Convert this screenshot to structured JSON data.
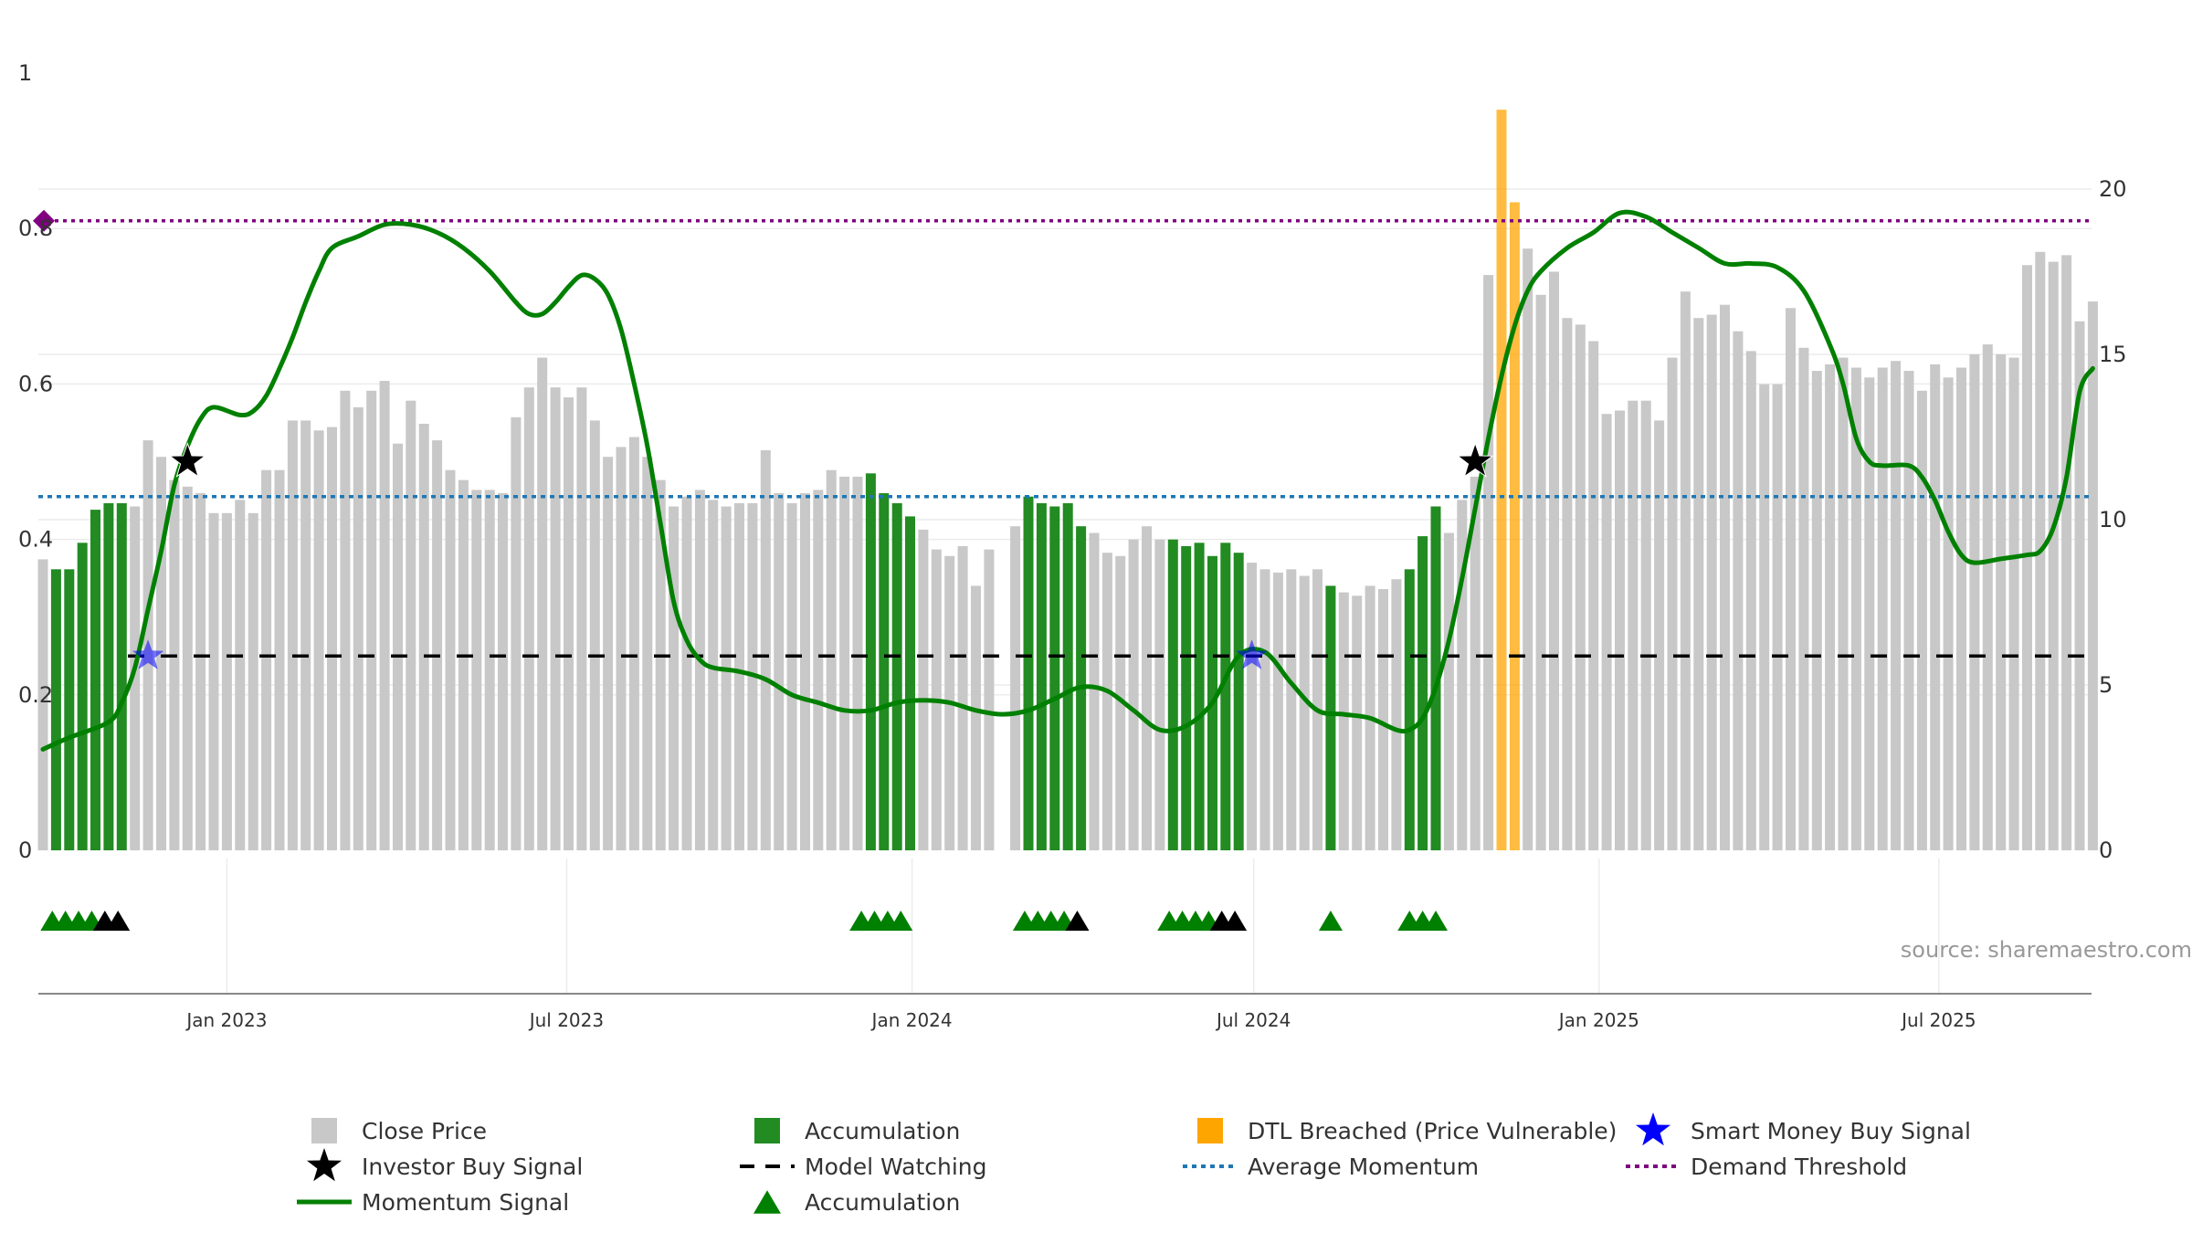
{
  "chart_data": {
    "type": "bar",
    "source": "source: sharemaestro.com",
    "left_axis": {
      "ticks": [
        "0",
        "0.2",
        "0.4",
        "0.6",
        "0.8",
        "1"
      ],
      "values": [
        0,
        0.2,
        0.4,
        0.6,
        0.8,
        1
      ],
      "ylim": [
        0,
        1
      ]
    },
    "right_axis": {
      "ticks": [
        "0",
        "5",
        "10",
        "15",
        "20"
      ],
      "values": [
        0,
        5,
        10,
        15,
        20
      ],
      "ylim": [
        0,
        23.5
      ]
    },
    "x_axis": {
      "labels": [
        "Jan 2023",
        "Jul 2023",
        "Jan 2024",
        "Jul 2024",
        "Jan 2025",
        "Jul 2025"
      ],
      "dates": [
        "2023-01-01",
        "2023-07-01",
        "2024-01-01",
        "2024-07-01",
        "2025-01-01",
        "2025-07-01"
      ],
      "range": [
        "2022-09-25",
        "2025-09-14"
      ]
    },
    "colors": {
      "close": "#c8c8c8",
      "accumulation": "#228b22",
      "dtl": "#ffa500",
      "momentum": "#008000",
      "average": "#1f77b4",
      "threshold": "#800080",
      "watch": "#000000",
      "smart_money": "#0000ff",
      "investor": "#000000"
    },
    "close_price": [
      [
        "2022-09-25",
        8.8,
        "c"
      ],
      [
        "2022-10-02",
        8.5,
        "a"
      ],
      [
        "2022-10-09",
        8.5,
        "a"
      ],
      [
        "2022-10-16",
        9.3,
        "a"
      ],
      [
        "2022-10-23",
        10.3,
        "a"
      ],
      [
        "2022-10-30",
        10.5,
        "a"
      ],
      [
        "2022-11-06",
        10.5,
        "a"
      ],
      [
        "2022-11-13",
        10.4,
        "c"
      ],
      [
        "2022-11-20",
        12.4,
        "c"
      ],
      [
        "2022-11-27",
        11.9,
        "c"
      ],
      [
        "2022-12-04",
        11.2,
        "c"
      ],
      [
        "2022-12-11",
        11.0,
        "c"
      ],
      [
        "2022-12-18",
        10.8,
        "c"
      ],
      [
        "2022-12-25",
        10.2,
        "c"
      ],
      [
        "2023-01-01",
        10.2,
        "c"
      ],
      [
        "2023-01-08",
        10.6,
        "c"
      ],
      [
        "2023-01-15",
        10.2,
        "c"
      ],
      [
        "2023-01-22",
        11.5,
        "c"
      ],
      [
        "2023-01-29",
        11.5,
        "c"
      ],
      [
        "2023-02-05",
        13.0,
        "c"
      ],
      [
        "2023-02-12",
        13.0,
        "c"
      ],
      [
        "2023-02-19",
        12.7,
        "c"
      ],
      [
        "2023-02-26",
        12.8,
        "c"
      ],
      [
        "2023-03-05",
        13.9,
        "c"
      ],
      [
        "2023-03-12",
        13.4,
        "c"
      ],
      [
        "2023-03-19",
        13.9,
        "c"
      ],
      [
        "2023-03-26",
        14.2,
        "c"
      ],
      [
        "2023-04-02",
        12.3,
        "c"
      ],
      [
        "2023-04-09",
        13.6,
        "c"
      ],
      [
        "2023-04-16",
        12.9,
        "c"
      ],
      [
        "2023-04-23",
        12.4,
        "c"
      ],
      [
        "2023-04-30",
        11.5,
        "c"
      ],
      [
        "2023-05-07",
        11.2,
        "c"
      ],
      [
        "2023-05-14",
        10.9,
        "c"
      ],
      [
        "2023-05-21",
        10.9,
        "c"
      ],
      [
        "2023-05-28",
        10.8,
        "c"
      ],
      [
        "2023-06-04",
        13.1,
        "c"
      ],
      [
        "2023-06-11",
        14.0,
        "c"
      ],
      [
        "2023-06-18",
        14.9,
        "c"
      ],
      [
        "2023-06-25",
        14.0,
        "c"
      ],
      [
        "2023-07-02",
        13.7,
        "c"
      ],
      [
        "2023-07-09",
        14.0,
        "c"
      ],
      [
        "2023-07-16",
        13.0,
        "c"
      ],
      [
        "2023-07-23",
        11.9,
        "c"
      ],
      [
        "2023-07-30",
        12.2,
        "c"
      ],
      [
        "2023-08-06",
        12.5,
        "c"
      ],
      [
        "2023-08-13",
        11.9,
        "c"
      ],
      [
        "2023-08-20",
        11.2,
        "c"
      ],
      [
        "2023-08-27",
        10.4,
        "c"
      ],
      [
        "2023-09-03",
        10.7,
        "c"
      ],
      [
        "2023-09-10",
        10.9,
        "c"
      ],
      [
        "2023-09-17",
        10.6,
        "c"
      ],
      [
        "2023-09-24",
        10.4,
        "c"
      ],
      [
        "2023-10-01",
        10.5,
        "c"
      ],
      [
        "2023-10-08",
        10.5,
        "c"
      ],
      [
        "2023-10-15",
        12.1,
        "c"
      ],
      [
        "2023-10-22",
        10.8,
        "c"
      ],
      [
        "2023-10-29",
        10.5,
        "c"
      ],
      [
        "2023-11-05",
        10.8,
        "c"
      ],
      [
        "2023-11-12",
        10.9,
        "c"
      ],
      [
        "2023-11-19",
        11.5,
        "c"
      ],
      [
        "2023-11-26",
        11.3,
        "c"
      ],
      [
        "2023-12-03",
        11.3,
        "c"
      ],
      [
        "2023-12-10",
        11.4,
        "a"
      ],
      [
        "2023-12-17",
        10.8,
        "a"
      ],
      [
        "2023-12-24",
        10.5,
        "a"
      ],
      [
        "2023-12-31",
        10.1,
        "a"
      ],
      [
        "2024-01-07",
        9.7,
        "c"
      ],
      [
        "2024-01-14",
        9.1,
        "c"
      ],
      [
        "2024-01-21",
        8.9,
        "c"
      ],
      [
        "2024-01-28",
        9.2,
        "c"
      ],
      [
        "2024-02-04",
        8.0,
        "c"
      ],
      [
        "2024-02-11",
        9.1,
        "c"
      ],
      [
        "2024-02-25",
        9.8,
        "c"
      ],
      [
        "2024-03-03",
        10.7,
        "a"
      ],
      [
        "2024-03-10",
        10.5,
        "a"
      ],
      [
        "2024-03-17",
        10.4,
        "a"
      ],
      [
        "2024-03-24",
        10.5,
        "a"
      ],
      [
        "2024-03-31",
        9.8,
        "a"
      ],
      [
        "2024-04-07",
        9.6,
        "c"
      ],
      [
        "2024-04-14",
        9.0,
        "c"
      ],
      [
        "2024-04-21",
        8.9,
        "c"
      ],
      [
        "2024-04-28",
        9.4,
        "c"
      ],
      [
        "2024-05-05",
        9.8,
        "c"
      ],
      [
        "2024-05-12",
        9.4,
        "c"
      ],
      [
        "2024-05-19",
        9.4,
        "a"
      ],
      [
        "2024-05-26",
        9.2,
        "a"
      ],
      [
        "2024-06-02",
        9.3,
        "a"
      ],
      [
        "2024-06-09",
        8.9,
        "a"
      ],
      [
        "2024-06-16",
        9.3,
        "a"
      ],
      [
        "2024-06-23",
        9.0,
        "a"
      ],
      [
        "2024-06-30",
        8.7,
        "c"
      ],
      [
        "2024-07-07",
        8.5,
        "c"
      ],
      [
        "2024-07-14",
        8.4,
        "c"
      ],
      [
        "2024-07-21",
        8.5,
        "c"
      ],
      [
        "2024-07-28",
        8.3,
        "c"
      ],
      [
        "2024-08-04",
        8.5,
        "c"
      ],
      [
        "2024-08-11",
        8.0,
        "a"
      ],
      [
        "2024-08-18",
        7.8,
        "c"
      ],
      [
        "2024-08-25",
        7.7,
        "c"
      ],
      [
        "2024-09-01",
        8.0,
        "c"
      ],
      [
        "2024-09-08",
        7.9,
        "c"
      ],
      [
        "2024-09-15",
        8.2,
        "c"
      ],
      [
        "2024-09-22",
        8.5,
        "a"
      ],
      [
        "2024-09-29",
        9.5,
        "a"
      ],
      [
        "2024-10-06",
        10.4,
        "a"
      ],
      [
        "2024-10-13",
        9.6,
        "c"
      ],
      [
        "2024-10-20",
        10.6,
        "c"
      ],
      [
        "2024-10-27",
        11.3,
        "c"
      ],
      [
        "2024-11-03",
        17.4,
        "c"
      ],
      [
        "2024-11-10",
        22.4,
        "d"
      ],
      [
        "2024-11-17",
        19.6,
        "d"
      ],
      [
        "2024-11-24",
        18.2,
        "c"
      ],
      [
        "2024-12-01",
        16.8,
        "c"
      ],
      [
        "2024-12-08",
        17.5,
        "c"
      ],
      [
        "2024-12-15",
        16.1,
        "c"
      ],
      [
        "2024-12-22",
        15.9,
        "c"
      ],
      [
        "2024-12-29",
        15.4,
        "c"
      ],
      [
        "2025-01-05",
        13.2,
        "c"
      ],
      [
        "2025-01-12",
        13.3,
        "c"
      ],
      [
        "2025-01-19",
        13.6,
        "c"
      ],
      [
        "2025-01-26",
        13.6,
        "c"
      ],
      [
        "2025-02-02",
        13.0,
        "c"
      ],
      [
        "2025-02-09",
        14.9,
        "c"
      ],
      [
        "2025-02-16",
        16.9,
        "c"
      ],
      [
        "2025-02-23",
        16.1,
        "c"
      ],
      [
        "2025-03-02",
        16.2,
        "c"
      ],
      [
        "2025-03-09",
        16.5,
        "c"
      ],
      [
        "2025-03-16",
        15.7,
        "c"
      ],
      [
        "2025-03-23",
        15.1,
        "c"
      ],
      [
        "2025-03-30",
        14.1,
        "c"
      ],
      [
        "2025-04-06",
        14.1,
        "c"
      ],
      [
        "2025-04-13",
        16.4,
        "c"
      ],
      [
        "2025-04-20",
        15.2,
        "c"
      ],
      [
        "2025-04-27",
        14.5,
        "c"
      ],
      [
        "2025-05-04",
        14.7,
        "c"
      ],
      [
        "2025-05-11",
        14.9,
        "c"
      ],
      [
        "2025-05-18",
        14.6,
        "c"
      ],
      [
        "2025-05-25",
        14.3,
        "c"
      ],
      [
        "2025-06-01",
        14.6,
        "c"
      ],
      [
        "2025-06-08",
        14.8,
        "c"
      ],
      [
        "2025-06-15",
        14.5,
        "c"
      ],
      [
        "2025-06-22",
        13.9,
        "c"
      ],
      [
        "2025-06-29",
        14.7,
        "c"
      ],
      [
        "2025-07-06",
        14.3,
        "c"
      ],
      [
        "2025-07-13",
        14.6,
        "c"
      ],
      [
        "2025-07-20",
        15.0,
        "c"
      ],
      [
        "2025-07-27",
        15.3,
        "c"
      ],
      [
        "2025-08-03",
        15.0,
        "c"
      ],
      [
        "2025-08-10",
        14.9,
        "c"
      ],
      [
        "2025-08-17",
        17.7,
        "c"
      ],
      [
        "2025-08-24",
        18.1,
        "c"
      ],
      [
        "2025-08-31",
        17.8,
        "c"
      ],
      [
        "2025-09-07",
        18.0,
        "c"
      ],
      [
        "2025-09-14",
        16.0,
        "c"
      ],
      [
        "2025-09-21",
        16.6,
        "c"
      ]
    ],
    "momentum_signal": [
      [
        "2022-09-25",
        0.13
      ],
      [
        "2022-10-09",
        0.145
      ],
      [
        "2022-10-30",
        0.165
      ],
      [
        "2022-11-06",
        0.19
      ],
      [
        "2022-11-13",
        0.235
      ],
      [
        "2022-11-20",
        0.31
      ],
      [
        "2022-11-27",
        0.385
      ],
      [
        "2022-12-04",
        0.47
      ],
      [
        "2022-12-11",
        0.52
      ],
      [
        "2022-12-18",
        0.555
      ],
      [
        "2022-12-25",
        0.57
      ],
      [
        "2023-01-08",
        0.56
      ],
      [
        "2023-01-15",
        0.565
      ],
      [
        "2023-01-22",
        0.585
      ],
      [
        "2023-01-29",
        0.62
      ],
      [
        "2023-02-05",
        0.66
      ],
      [
        "2023-02-12",
        0.705
      ],
      [
        "2023-02-19",
        0.745
      ],
      [
        "2023-02-26",
        0.775
      ],
      [
        "2023-03-12",
        0.79
      ],
      [
        "2023-03-26",
        0.805
      ],
      [
        "2023-04-09",
        0.805
      ],
      [
        "2023-04-23",
        0.795
      ],
      [
        "2023-05-07",
        0.775
      ],
      [
        "2023-05-21",
        0.745
      ],
      [
        "2023-06-04",
        0.705
      ],
      [
        "2023-06-11",
        0.69
      ],
      [
        "2023-06-18",
        0.69
      ],
      [
        "2023-06-25",
        0.705
      ],
      [
        "2023-07-02",
        0.725
      ],
      [
        "2023-07-09",
        0.74
      ],
      [
        "2023-07-16",
        0.735
      ],
      [
        "2023-07-23",
        0.715
      ],
      [
        "2023-07-30",
        0.67
      ],
      [
        "2023-08-06",
        0.6
      ],
      [
        "2023-08-13",
        0.52
      ],
      [
        "2023-08-20",
        0.42
      ],
      [
        "2023-08-27",
        0.32
      ],
      [
        "2023-09-03",
        0.27
      ],
      [
        "2023-09-10",
        0.245
      ],
      [
        "2023-09-17",
        0.235
      ],
      [
        "2023-10-01",
        0.23
      ],
      [
        "2023-10-15",
        0.22
      ],
      [
        "2023-10-29",
        0.2
      ],
      [
        "2023-11-12",
        0.19
      ],
      [
        "2023-11-26",
        0.18
      ],
      [
        "2023-12-10",
        0.18
      ],
      [
        "2023-12-24",
        0.19
      ],
      [
        "2024-01-07",
        0.193
      ],
      [
        "2024-01-21",
        0.19
      ],
      [
        "2024-02-04",
        0.18
      ],
      [
        "2024-02-18",
        0.175
      ],
      [
        "2024-03-03",
        0.18
      ],
      [
        "2024-03-17",
        0.195
      ],
      [
        "2024-03-31",
        0.21
      ],
      [
        "2024-04-14",
        0.205
      ],
      [
        "2024-04-28",
        0.18
      ],
      [
        "2024-05-12",
        0.155
      ],
      [
        "2024-05-26",
        0.16
      ],
      [
        "2024-06-09",
        0.19
      ],
      [
        "2024-06-23",
        0.25
      ],
      [
        "2024-07-07",
        0.255
      ],
      [
        "2024-07-21",
        0.215
      ],
      [
        "2024-08-04",
        0.18
      ],
      [
        "2024-08-18",
        0.175
      ],
      [
        "2024-09-01",
        0.17
      ],
      [
        "2024-09-15",
        0.155
      ],
      [
        "2024-09-22",
        0.155
      ],
      [
        "2024-09-29",
        0.17
      ],
      [
        "2024-10-06",
        0.21
      ],
      [
        "2024-10-13",
        0.27
      ],
      [
        "2024-10-20",
        0.35
      ],
      [
        "2024-10-27",
        0.44
      ],
      [
        "2024-11-03",
        0.53
      ],
      [
        "2024-11-10",
        0.61
      ],
      [
        "2024-11-17",
        0.675
      ],
      [
        "2024-11-24",
        0.72
      ],
      [
        "2024-12-01",
        0.745
      ],
      [
        "2024-12-15",
        0.775
      ],
      [
        "2024-12-29",
        0.795
      ],
      [
        "2025-01-12",
        0.82
      ],
      [
        "2025-01-26",
        0.815
      ],
      [
        "2025-02-09",
        0.795
      ],
      [
        "2025-02-23",
        0.775
      ],
      [
        "2025-03-09",
        0.755
      ],
      [
        "2025-03-23",
        0.755
      ],
      [
        "2025-04-06",
        0.75
      ],
      [
        "2025-04-20",
        0.72
      ],
      [
        "2025-05-04",
        0.65
      ],
      [
        "2025-05-11",
        0.6
      ],
      [
        "2025-05-18",
        0.53
      ],
      [
        "2025-05-25",
        0.5
      ],
      [
        "2025-06-01",
        0.495
      ],
      [
        "2025-06-15",
        0.495
      ],
      [
        "2025-06-22",
        0.48
      ],
      [
        "2025-06-29",
        0.45
      ],
      [
        "2025-07-06",
        0.41
      ],
      [
        "2025-07-13",
        0.38
      ],
      [
        "2025-07-20",
        0.37
      ],
      [
        "2025-08-03",
        0.375
      ],
      [
        "2025-08-17",
        0.38
      ],
      [
        "2025-08-24",
        0.385
      ],
      [
        "2025-08-31",
        0.415
      ],
      [
        "2025-09-07",
        0.48
      ],
      [
        "2025-09-14",
        0.59
      ],
      [
        "2025-09-21",
        0.62
      ]
    ],
    "average_momentum": 0.455,
    "demand_threshold": 0.81,
    "model_watching": 0.25,
    "smart_money_buy_signal": [
      [
        "2022-11-20",
        0.25
      ],
      [
        "2024-06-30",
        0.25
      ]
    ],
    "investor_buy_signal": [
      [
        "2022-12-11",
        0.5
      ],
      [
        "2024-10-27",
        0.5
      ]
    ],
    "accumulation_markers": [
      [
        "2022-09-30",
        "g"
      ],
      [
        "2022-10-07",
        "g"
      ],
      [
        "2022-10-14",
        "g"
      ],
      [
        "2022-10-21",
        "g"
      ],
      [
        "2022-10-28",
        "b"
      ],
      [
        "2022-11-04",
        "b"
      ],
      [
        "2023-12-05",
        "g"
      ],
      [
        "2023-12-12",
        "g"
      ],
      [
        "2023-12-19",
        "g"
      ],
      [
        "2023-12-26",
        "g"
      ],
      [
        "2024-03-01",
        "g"
      ],
      [
        "2024-03-08",
        "g"
      ],
      [
        "2024-03-15",
        "g"
      ],
      [
        "2024-03-22",
        "g"
      ],
      [
        "2024-03-29",
        "b"
      ],
      [
        "2024-05-17",
        "g"
      ],
      [
        "2024-05-24",
        "g"
      ],
      [
        "2024-05-31",
        "g"
      ],
      [
        "2024-06-07",
        "g"
      ],
      [
        "2024-06-14",
        "b"
      ],
      [
        "2024-06-21",
        "b"
      ],
      [
        "2024-08-11",
        "g"
      ],
      [
        "2024-09-22",
        "g"
      ],
      [
        "2024-09-29",
        "g"
      ],
      [
        "2024-10-06",
        "g"
      ]
    ],
    "legend": [
      {
        "label": "Close Price",
        "symbol": "square",
        "color": "#c8c8c8"
      },
      {
        "label": "Accumulation",
        "symbol": "square",
        "color": "#228b22"
      },
      {
        "label": "DTL Breached (Price Vulnerable)",
        "symbol": "square",
        "color": "#ffa500"
      },
      {
        "label": "Smart Money Buy Signal",
        "symbol": "star",
        "color": "#0000ff"
      },
      {
        "label": "Investor Buy Signal",
        "symbol": "star",
        "color": "#000000"
      },
      {
        "label": "Model Watching",
        "symbol": "dash",
        "color": "#000000"
      },
      {
        "label": "Average Momentum",
        "symbol": "dot",
        "color": "#1f77b4"
      },
      {
        "label": "Demand Threshold",
        "symbol": "dot",
        "color": "#800080"
      },
      {
        "label": "Momentum Signal",
        "symbol": "line",
        "color": "#008000"
      },
      {
        "label": "Accumulation",
        "symbol": "triangle",
        "color": "#008000"
      }
    ]
  }
}
